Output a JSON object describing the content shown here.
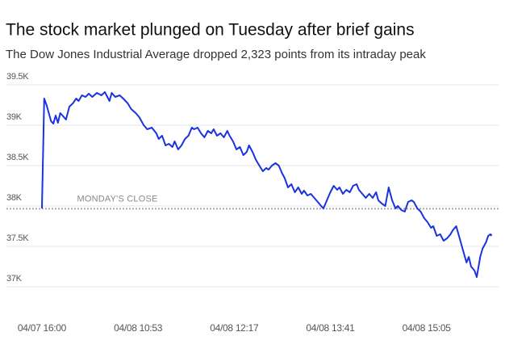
{
  "chart_data": {
    "type": "line",
    "title": "The stock market plunged on Tuesday after brief gains",
    "subtitle": "The Dow Jones Industrial Average dropped 2,323 points from its intraday peak",
    "ylim": [
      37000,
      39500
    ],
    "yticks": [
      {
        "value": 37000,
        "label": "37K"
      },
      {
        "value": 37500,
        "label": "37.5K"
      },
      {
        "value": 38000,
        "label": "38K"
      },
      {
        "value": 38500,
        "label": "38.5K"
      },
      {
        "value": 39000,
        "label": "39K"
      },
      {
        "value": 39500,
        "label": "39.5K"
      }
    ],
    "xlim": [
      -31,
      399
    ],
    "xticks": [
      {
        "value": 0,
        "label": "04/07 16:00"
      },
      {
        "value": 84,
        "label": "04/08 10:53"
      },
      {
        "value": 168,
        "label": "04/08 12:17"
      },
      {
        "value": 252,
        "label": "04/08 13:41"
      },
      {
        "value": 336,
        "label": "04/08 15:05"
      }
    ],
    "grid": true,
    "reference": {
      "label": "MONDAY'S CLOSE",
      "value": 37966
    },
    "series": [
      {
        "color": "#1a32e0",
        "x": [
          0,
          2,
          4,
          6,
          8,
          10,
          12,
          14,
          16,
          18,
          21,
          24,
          27,
          30,
          32,
          35,
          38,
          41,
          44,
          48,
          52,
          55,
          59,
          61,
          64,
          68,
          71,
          75,
          78,
          82,
          85,
          89,
          92,
          96,
          100,
          102,
          105,
          108,
          111,
          114,
          116,
          119,
          122,
          125,
          128,
          131,
          133,
          136,
          139,
          142,
          145,
          148,
          150,
          153,
          156,
          159,
          162,
          164,
          167,
          170,
          173,
          176,
          179,
          181,
          184,
          187,
          190,
          193,
          196,
          198,
          201,
          204,
          207,
          210,
          212,
          215,
          218,
          221,
          224,
          227,
          229,
          232,
          235,
          238,
          241,
          244,
          246,
          249,
          252,
          255,
          258,
          260,
          263,
          266,
          269,
          272,
          275,
          277,
          280,
          283,
          286,
          289,
          292,
          294,
          297,
          300,
          303,
          306,
          309,
          311,
          314,
          317,
          320,
          323,
          325,
          328,
          331,
          334,
          337,
          340,
          342,
          345,
          348,
          351,
          354,
          357,
          359,
          362,
          365,
          368,
          371,
          373,
          375,
          378,
          380,
          383,
          385,
          388,
          390,
          392,
          393
        ],
        "values": [
          37970,
          39330,
          39250,
          39150,
          39050,
          39020,
          39120,
          39030,
          39150,
          39120,
          39070,
          39230,
          39270,
          39330,
          39300,
          39370,
          39350,
          39390,
          39350,
          39400,
          39370,
          39410,
          39300,
          39400,
          39350,
          39370,
          39330,
          39270,
          39200,
          39150,
          39100,
          39000,
          38950,
          38970,
          38900,
          38830,
          38870,
          38750,
          38770,
          38730,
          38800,
          38700,
          38750,
          38830,
          38870,
          38970,
          38950,
          38970,
          38900,
          38850,
          38930,
          38900,
          38950,
          38870,
          38900,
          38850,
          38930,
          38870,
          38800,
          38700,
          38730,
          38630,
          38670,
          38750,
          38670,
          38570,
          38500,
          38430,
          38470,
          38450,
          38500,
          38530,
          38500,
          38400,
          38350,
          38230,
          38270,
          38170,
          38230,
          38150,
          38190,
          38130,
          38150,
          38100,
          38050,
          38000,
          37970,
          38070,
          38170,
          38250,
          38200,
          38230,
          38150,
          38200,
          38170,
          38250,
          38270,
          38200,
          38150,
          38100,
          38150,
          38100,
          38170,
          38070,
          38030,
          38000,
          38230,
          38070,
          37970,
          38000,
          37950,
          37930,
          38050,
          38070,
          38050,
          37970,
          37930,
          37850,
          37800,
          37730,
          37750,
          37630,
          37650,
          37570,
          37600,
          37650,
          37700,
          37750,
          37600,
          37450,
          37300,
          37370,
          37250,
          37200,
          37120,
          37370,
          37470,
          37550,
          37630,
          37650,
          37630
        ]
      }
    ]
  }
}
